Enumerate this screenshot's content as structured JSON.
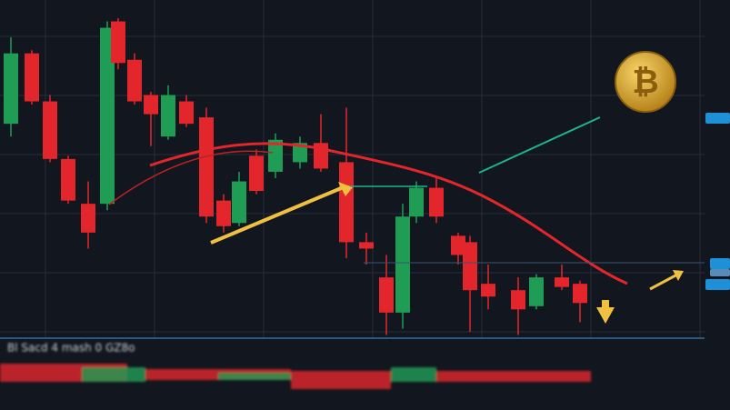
{
  "chart_data": {
    "type": "candlestick",
    "caption": "Bl Sacd 4 mash 0 GZ8o",
    "up_color": "#1f9d55",
    "down_color": "#e3262b",
    "ylim": [
      0,
      100
    ],
    "grid": true,
    "open": [
      67,
      89,
      74,
      56,
      42,
      42,
      99,
      87,
      76,
      63,
      74,
      69,
      43,
      36,
      57,
      52,
      55,
      61,
      55,
      30,
      19,
      8,
      38,
      47,
      32,
      30,
      17,
      15,
      10,
      19,
      17
    ],
    "high": [
      94,
      90,
      76,
      57,
      49,
      99,
      100,
      89,
      77,
      79,
      76,
      72,
      45,
      52,
      59,
      64,
      63,
      70,
      72,
      33,
      26,
      42,
      49,
      50,
      33,
      32,
      23,
      19,
      20,
      23,
      18
    ],
    "low": [
      63,
      73,
      55,
      42,
      28,
      40,
      84,
      73,
      60,
      62,
      66,
      36,
      33,
      35,
      45,
      50,
      53,
      52,
      25,
      23,
      1,
      3,
      36,
      36,
      23,
      2,
      9,
      1,
      9,
      15,
      5
    ],
    "close": [
      89,
      74,
      56,
      43,
      33,
      97,
      86,
      74,
      70,
      76,
      67,
      38,
      35,
      49,
      46,
      62,
      61,
      53,
      30,
      28,
      8,
      38,
      47,
      38,
      26,
      15,
      13,
      9,
      19,
      16,
      11
    ]
  }
}
